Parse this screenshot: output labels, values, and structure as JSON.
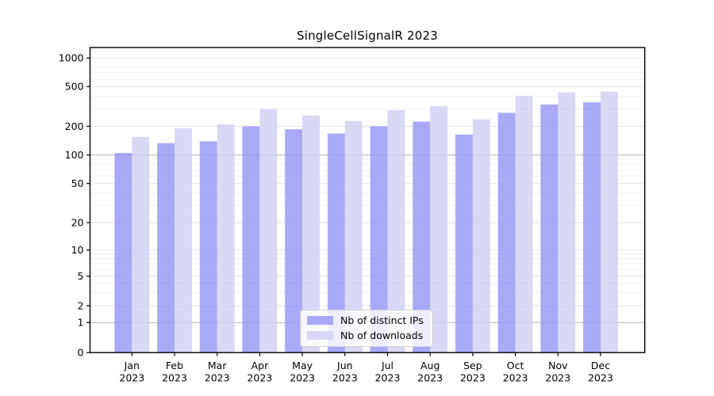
{
  "chart_data": {
    "type": "bar",
    "title": "SingleCellSignalR 2023",
    "categories": [
      "Jan",
      "Feb",
      "Mar",
      "Apr",
      "May",
      "Jun",
      "Jul",
      "Aug",
      "Sep",
      "Oct",
      "Nov",
      "Dec"
    ],
    "x_tick_year": "2023",
    "series": [
      {
        "name": "Nb of distinct IPs",
        "color": "#9393f6",
        "alpha": 0.8,
        "values": [
          105,
          133,
          139,
          200,
          186,
          168,
          200,
          223,
          164,
          273,
          330,
          348
        ]
      },
      {
        "name": "Nb of downloads",
        "color": "#d0d0f4",
        "alpha": 0.8,
        "values": [
          155,
          191,
          210,
          298,
          257,
          226,
          291,
          318,
          235,
          403,
          438,
          445
        ]
      }
    ],
    "y_ticks": [
      0,
      1,
      2,
      5,
      10,
      20,
      50,
      100,
      200,
      500,
      1000
    ],
    "y_minor_ticks": [
      3,
      4,
      6,
      7,
      8,
      9,
      30,
      40,
      60,
      70,
      80,
      90,
      300,
      400,
      600,
      700,
      800,
      900
    ],
    "emphasized_gridlines": [
      1,
      100
    ],
    "y_scale": "symlog",
    "ylim": [
      0,
      1300
    ],
    "grid": true,
    "legend_position": "lower center",
    "colors": {
      "grid_major": "#e3e3e3",
      "grid_minor": "#f1f1f1",
      "grid_emphasized": "#b3b3b3",
      "axis": "#000000",
      "text": "#000000"
    }
  }
}
